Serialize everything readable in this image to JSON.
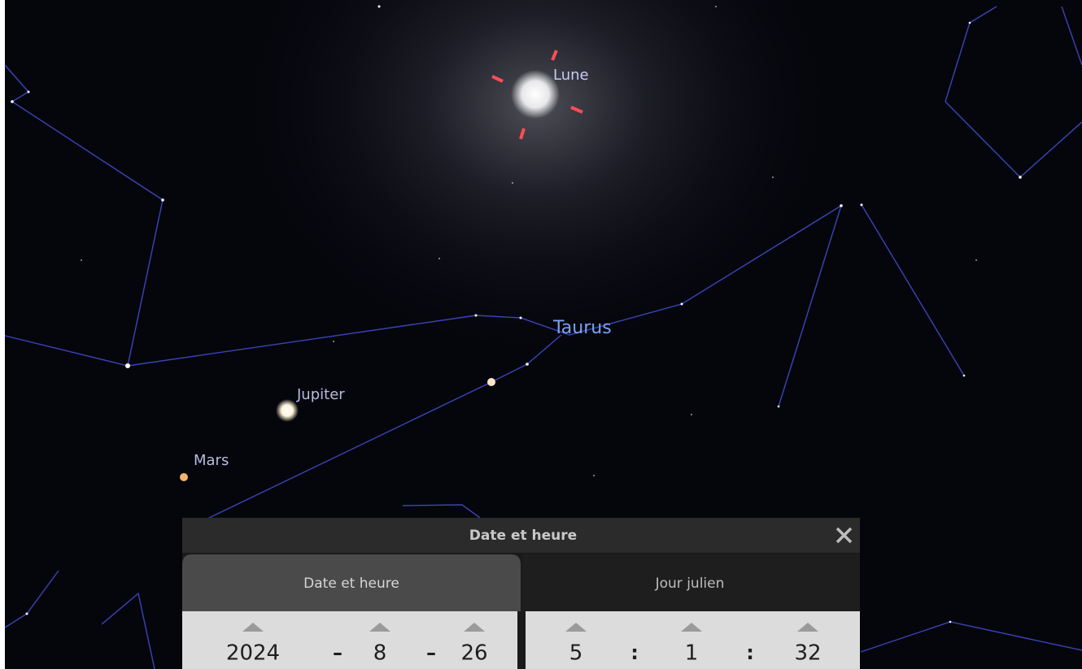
{
  "sky": {
    "labels": {
      "moon": "Lune",
      "constellation": "Taurus",
      "jupiter": "Jupiter",
      "mars": "Mars"
    }
  },
  "dialog": {
    "title": "Date et heure",
    "tabs": [
      "Date et heure",
      "Jour julien"
    ],
    "date_fields": [
      2024,
      "–",
      8,
      "–",
      26
    ],
    "time_fields": [
      5,
      ":",
      1,
      ":",
      32
    ]
  }
}
